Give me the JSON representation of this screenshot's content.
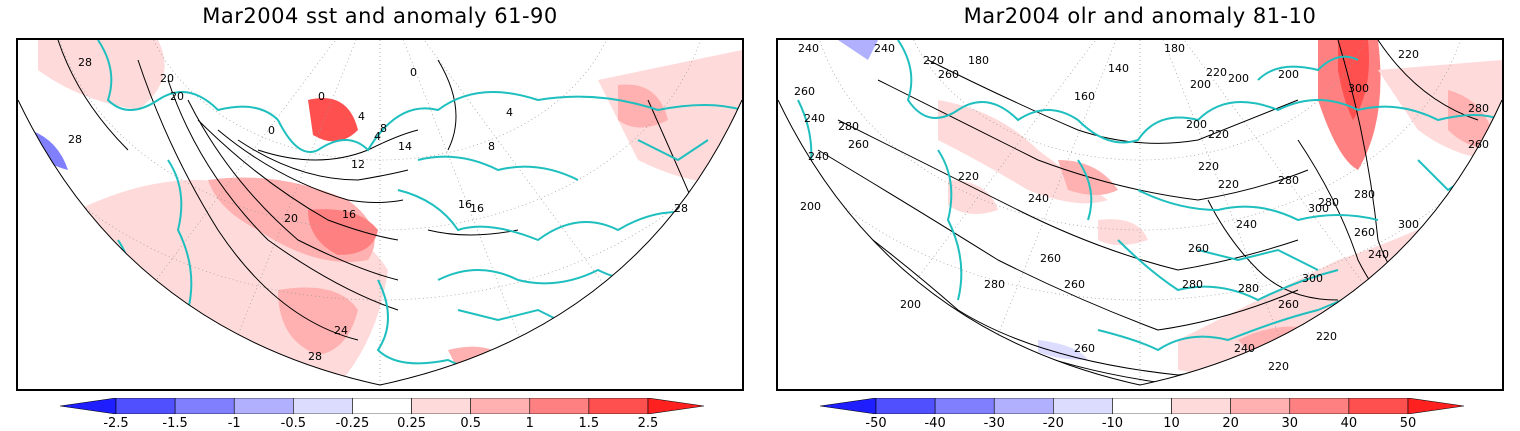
{
  "panels": [
    {
      "title": "Mar2004 sst and anomaly 61-90",
      "contour_labels": [
        "28",
        "28",
        "20",
        "20",
        "0",
        "0",
        "0",
        "4",
        "4",
        "8",
        "12",
        "14",
        "16",
        "16",
        "16",
        "8",
        "20",
        "24",
        "28",
        "28",
        "4"
      ],
      "colorbar": {
        "labels": [
          "-2.5",
          "-1.5",
          "-1",
          "-0.5",
          "-0.25",
          "0.25",
          "0.5",
          "1",
          "1.5",
          "2.5"
        ],
        "colors": [
          "#1e1eff",
          "#5050ff",
          "#8080ff",
          "#b0b0ff",
          "#dcdcff",
          "#ffffff",
          "#ffdada",
          "#ffb0b0",
          "#ff8080",
          "#ff5050",
          "#ff2020"
        ]
      }
    },
    {
      "title": "Mar2004 olr and anomaly 81-10",
      "contour_labels": [
        "240",
        "240",
        "220",
        "180",
        "260",
        "260",
        "240",
        "280",
        "140",
        "160",
        "180",
        "200",
        "220",
        "200",
        "200",
        "200",
        "220",
        "220",
        "240",
        "260",
        "300",
        "280",
        "240",
        "220",
        "200",
        "260",
        "240",
        "260",
        "280",
        "300",
        "280",
        "280",
        "260",
        "280",
        "300",
        "260",
        "280",
        "220",
        "260",
        "300",
        "240",
        "260",
        "280",
        "220",
        "240",
        "260",
        "220",
        "200",
        "220"
      ],
      "colorbar": {
        "labels": [
          "-50",
          "-40",
          "-30",
          "-20",
          "-10",
          "10",
          "20",
          "30",
          "40",
          "50"
        ],
        "colors": [
          "#1e1eff",
          "#5050ff",
          "#8080ff",
          "#b0b0ff",
          "#dcdcff",
          "#ffffff",
          "#ffdada",
          "#ffb0b0",
          "#ff8080",
          "#ff5050",
          "#ff2020"
        ]
      }
    }
  ]
}
